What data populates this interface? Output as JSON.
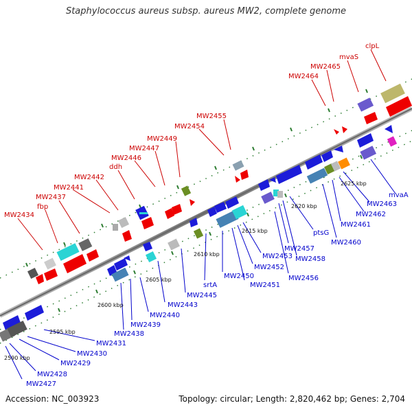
{
  "title": "Staphylococcus aureus subsp. aureus MW2, complete genome",
  "footer": {
    "accession": "Accession: NC_003923",
    "summary": "Topology: circular; Length: 2,820,462 bp; Genes: 2,704"
  },
  "scale_labels": [
    "2590 kbp",
    "2595 kbp",
    "2600 kbp",
    "2605 kbp",
    "2610 kbp",
    "2615 kbp",
    "2620 kbp",
    "2625 kbp"
  ],
  "gene_labels_upper": [
    "MW2434",
    "fbp",
    "MW2437",
    "MW2441",
    "MW2442",
    "ddh",
    "MW2446",
    "MW2447",
    "MW2449",
    "MW2454",
    "MW2455",
    "MW2464",
    "MW2465",
    "mvaS",
    "clpL"
  ],
  "gene_labels_lower": [
    "MW2427",
    "MW2428",
    "MW2429",
    "MW2430",
    "MW2431",
    "MW2438",
    "MW2439",
    "MW2440",
    "MW2443",
    "MW2445",
    "srtA",
    "MW2450",
    "MW2451",
    "MW2452",
    "MW2453",
    "MW2456",
    "MW2457",
    "MW2458",
    "ptsG",
    "MW2460",
    "MW2461",
    "MW2462",
    "MW2463",
    "mvaA"
  ],
  "colors": {
    "upper_label": "#cc0000",
    "lower_label": "#0000cc",
    "backbone": "#888888",
    "tick": "#2e7d32"
  }
}
